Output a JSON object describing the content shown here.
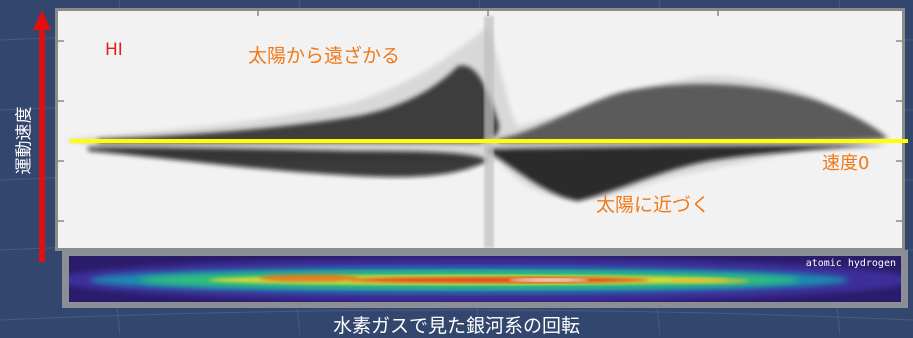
{
  "labels": {
    "hi": "HI",
    "receding": "太陽から遠ざかる",
    "velocity_zero": "速度0",
    "approaching": "太陽に近づく",
    "axis": "運動速度",
    "hydrogen_map": "atomic hydrogen",
    "caption": "水素ガスで見た銀河系の回転"
  },
  "colors": {
    "background": "#33466e",
    "orange_text": "#f07a1a",
    "hi_text": "#e02020",
    "zero_line": "#ffff00",
    "arrow": "#e01010"
  },
  "icons": {
    "arrow": "up-arrow-icon"
  }
}
